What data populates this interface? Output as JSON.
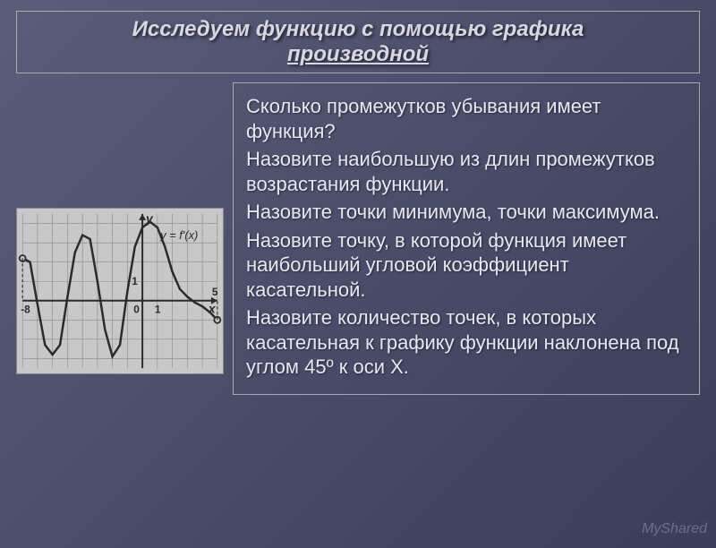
{
  "title": {
    "line1": "Исследуем функцию с помощью графика",
    "line2": "производной",
    "text_color": "#d8d8e0",
    "fontsize": 24
  },
  "questions": [
    "Сколько промежутков убывания имеет функция?",
    "Назовите наибольшую из длин промежутков возрастания функции.",
    "Назовите точки минимума, точки максимума.",
    "Назовите точку, в которой функция имеет наибольший угловой коэффициент касательной.",
    "Назовите количество точек, в которых касательная к графику функции наклонена под углом 45º к оси Х."
  ],
  "graph": {
    "type": "line",
    "label": "y = f'(x)",
    "xlim": [
      -8,
      5
    ],
    "ylim": [
      -3.5,
      4.5
    ],
    "x_ticks": [
      -8,
      0,
      1,
      5
    ],
    "y_ticks": [
      0,
      1
    ],
    "background_color": "#c8c8c8",
    "grid_color": "#888888",
    "curve_color": "#2a2a2a",
    "curve_width": 2.5,
    "axis_color": "#2a2a2a",
    "axis_width": 2,
    "endpoint_marker": "open-circle",
    "endpoint_fill": "#c8c8c8",
    "endpoint_stroke": "#2a2a2a",
    "label_fontsize": 11,
    "points": [
      [
        -8,
        2.2
      ],
      [
        -7.5,
        2.0
      ],
      [
        -7,
        -0.2
      ],
      [
        -6.5,
        -2.3
      ],
      [
        -6,
        -2.8
      ],
      [
        -5.5,
        -2.3
      ],
      [
        -5,
        0.2
      ],
      [
        -4.5,
        2.5
      ],
      [
        -4,
        3.4
      ],
      [
        -3.5,
        3.2
      ],
      [
        -3,
        1.0
      ],
      [
        -2.5,
        -1.5
      ],
      [
        -2,
        -2.9
      ],
      [
        -1.5,
        -2.3
      ],
      [
        -1,
        0.5
      ],
      [
        -0.5,
        2.8
      ],
      [
        0,
        3.8
      ],
      [
        0.5,
        4.1
      ],
      [
        1,
        3.8
      ],
      [
        1.5,
        2.8
      ],
      [
        2,
        1.5
      ],
      [
        2.5,
        0.6
      ],
      [
        3,
        0.2
      ],
      [
        3.5,
        -0.1
      ],
      [
        4,
        -0.3
      ],
      [
        4.5,
        -0.6
      ],
      [
        5,
        -1.0
      ]
    ]
  },
  "watermark": "MyShared",
  "colors": {
    "slide_bg_start": "#5a5d7a",
    "slide_bg_end": "#3a3d5a",
    "border_color": "#aaaaaa",
    "text_color": "#e8e8ee"
  }
}
